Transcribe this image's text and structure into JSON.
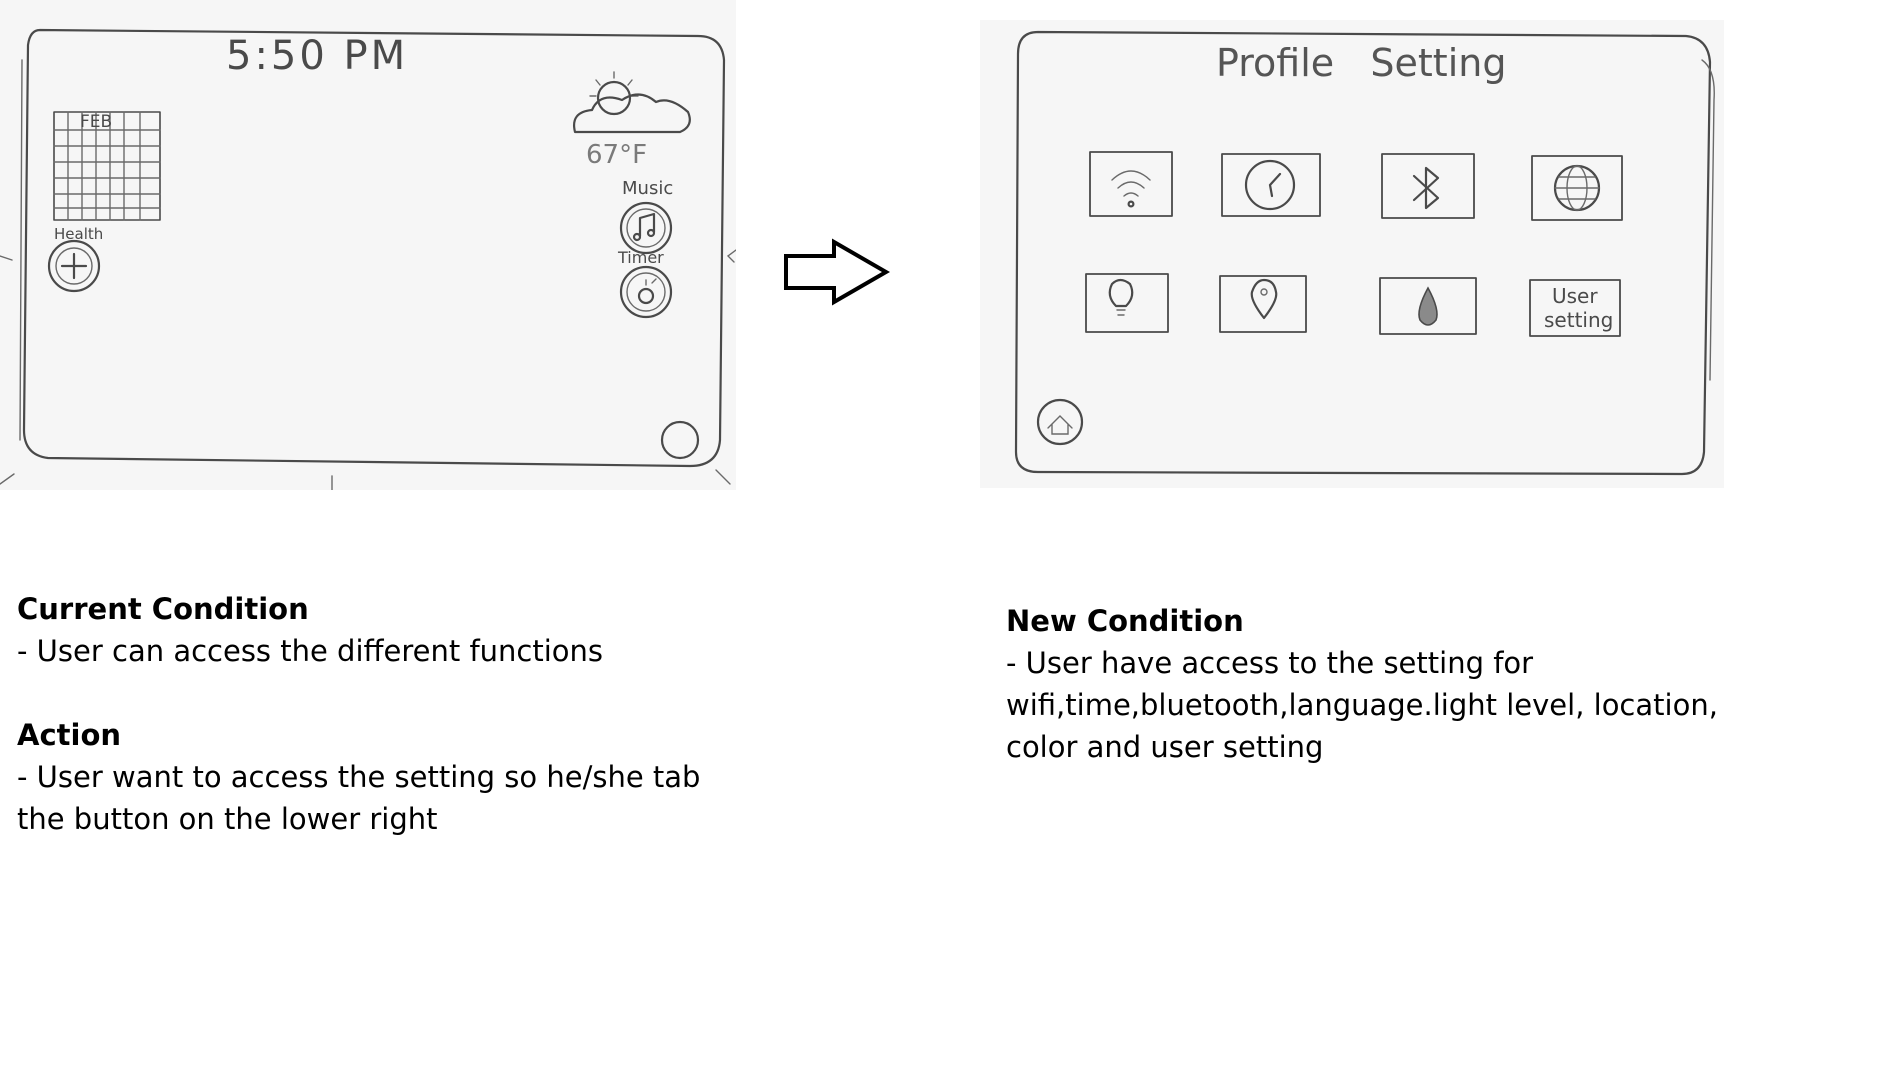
{
  "sketch_current": {
    "clock": "5:50 PM",
    "calendar_month": "FEB",
    "temperature": "67°F",
    "music_label": "Music",
    "timer_label": "Timer",
    "health_label": "Health"
  },
  "sketch_new": {
    "title": "Profile   Setting",
    "user_setting_line1": "User",
    "user_setting_line2": "setting",
    "icons": [
      "wifi-icon",
      "clock-icon",
      "bluetooth-icon",
      "globe-icon",
      "lightbulb-icon",
      "location-pin-icon",
      "color-drop-icon",
      "user-setting-icon"
    ]
  },
  "current_condition": {
    "heading": "Current Condition",
    "text": "- User can access the different functions"
  },
  "action": {
    "heading": "Action",
    "text_line1": "- User want to access the setting so he/she tab",
    "text_line2": "the button on the lower right"
  },
  "new_condition": {
    "heading": "New Condition",
    "text_line1": "- User have access to the setting for",
    "text_line2": "wifi,time,bluetooth,language.light level, location,",
    "text_line3": "color and user setting"
  }
}
